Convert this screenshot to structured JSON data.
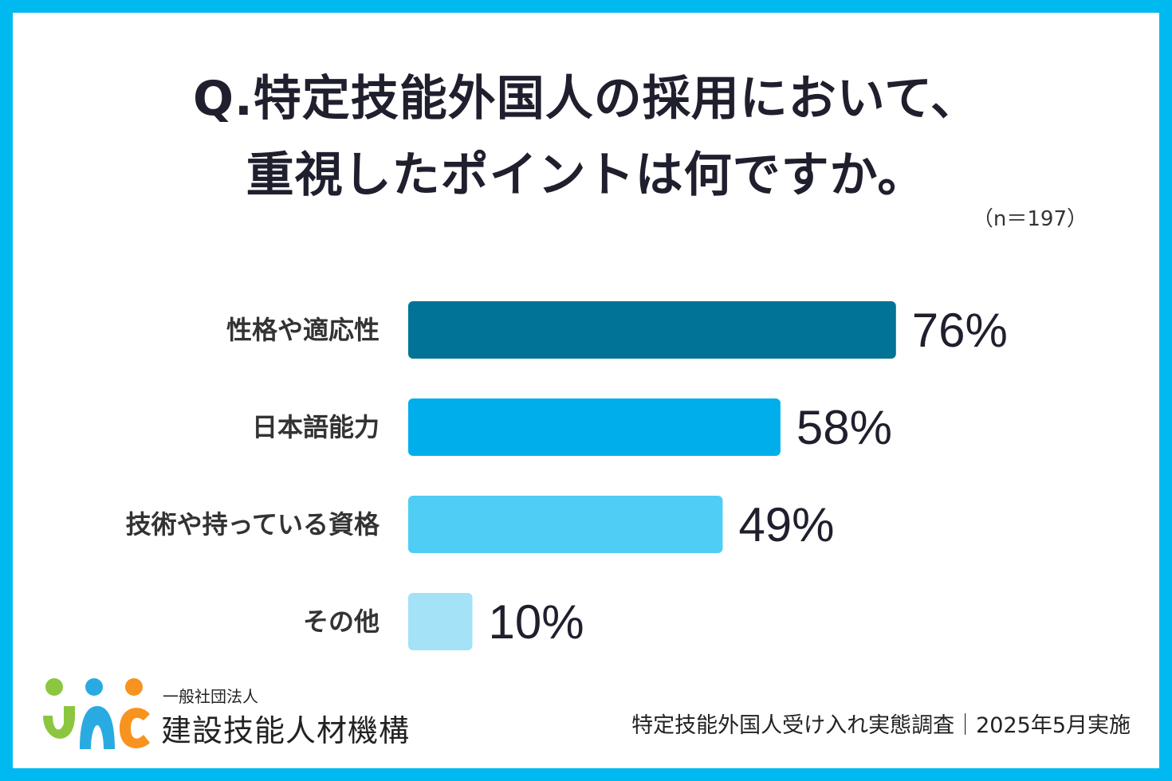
{
  "title_line1": "Q.特定技能外国人の採用において、",
  "title_line2": "重視したポイントは何ですか。",
  "sample_size": "（n＝197）",
  "source": "特定技能外国人受け入れ実態調査｜2025年5月実施",
  "logo": {
    "org_sub": "一般社団法人",
    "org_main": "建設技能人材機構",
    "mark_text": "JAC",
    "mark_colors": [
      "#8cc63f",
      "#29abe2",
      "#f7931e"
    ]
  },
  "chart_data": {
    "type": "bar",
    "orientation": "horizontal",
    "title": "Q.特定技能外国人の採用において、重視したポイントは何ですか。",
    "categories": [
      "性格や適応性",
      "日本語能力",
      "技術や持っている資格",
      "その他"
    ],
    "values": [
      76,
      58,
      49,
      10
    ],
    "value_labels": [
      "76%",
      "58%",
      "49%",
      "10%"
    ],
    "unit": "%",
    "xlim": [
      0,
      100
    ],
    "colors": [
      "#007396",
      "#00aeeb",
      "#4fcdf4",
      "#a3e2f7"
    ],
    "grid": false
  }
}
